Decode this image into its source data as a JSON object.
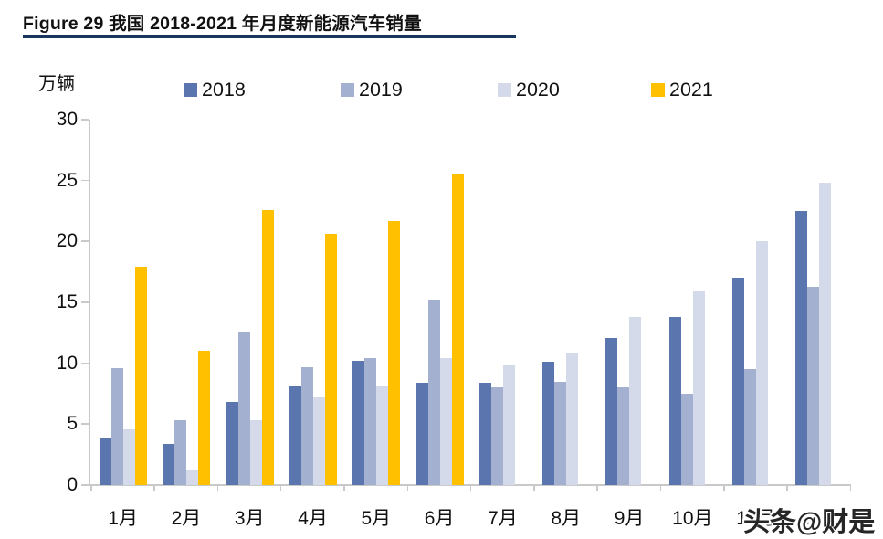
{
  "title": "Figure 29 我国 2018-2021 年月度新能源汽车销量",
  "watermark": "头条@财是",
  "colors": {
    "title_rule": "#17375E",
    "axis": "#C9C9C9",
    "text": "#111111",
    "series_2018": "#5B76AE",
    "series_2019": "#A3B0CF",
    "series_2020": "#D4DAE9",
    "series_2021": "#FFC000"
  },
  "chart_data": {
    "type": "bar",
    "title": "Figure 29 我国 2018-2021 年月度新能源汽车销量",
    "ylabel": "万辆",
    "xlabel": "",
    "ylim": [
      0,
      30
    ],
    "y_ticks": [
      0,
      5,
      10,
      15,
      20,
      25,
      30
    ],
    "grid": false,
    "legend_position": "top",
    "categories": [
      "1月",
      "2月",
      "3月",
      "4月",
      "5月",
      "6月",
      "7月",
      "8月",
      "9月",
      "10月",
      "11月",
      "12月"
    ],
    "series": [
      {
        "name": "2018",
        "color": "#5B76AE",
        "values": [
          3.9,
          3.4,
          6.8,
          8.2,
          10.2,
          8.4,
          8.4,
          10.1,
          12.1,
          13.8,
          17.0,
          22.5
        ]
      },
      {
        "name": "2019",
        "color": "#A3B0CF",
        "values": [
          9.6,
          5.3,
          12.6,
          9.7,
          10.4,
          15.2,
          8.0,
          8.5,
          8.0,
          7.5,
          9.5,
          16.3
        ]
      },
      {
        "name": "2020",
        "color": "#D4DAE9",
        "values": [
          4.6,
          1.3,
          5.3,
          7.2,
          8.2,
          10.4,
          9.8,
          10.9,
          13.8,
          16.0,
          20.0,
          24.8
        ]
      },
      {
        "name": "2021",
        "color": "#FFC000",
        "values": [
          17.9,
          11.0,
          22.6,
          20.6,
          21.7,
          25.6,
          null,
          null,
          null,
          null,
          null,
          null
        ]
      }
    ]
  }
}
